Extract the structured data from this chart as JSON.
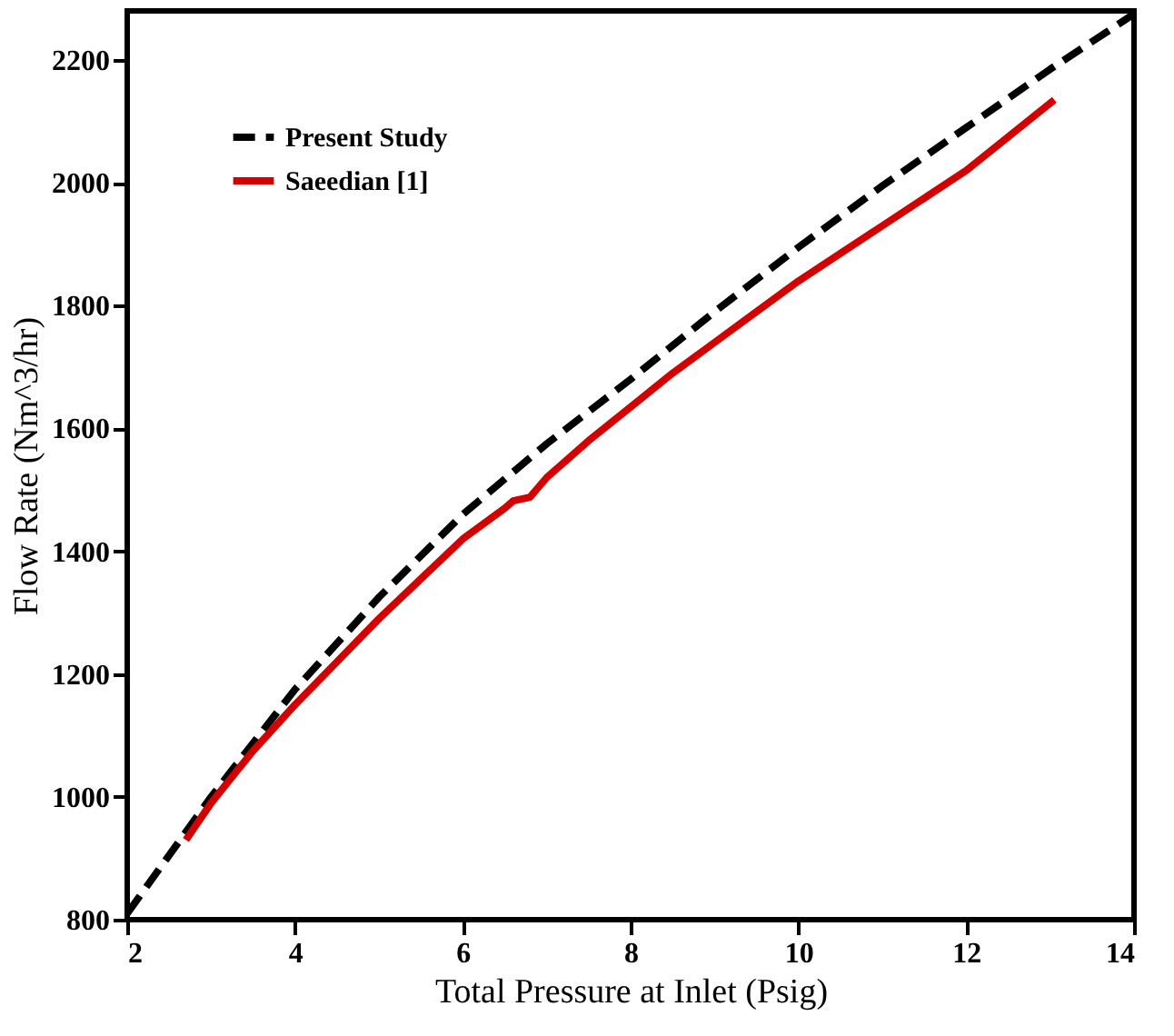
{
  "chart_data": {
    "type": "line",
    "xlabel": "Total Pressure at Inlet (Psig)",
    "ylabel": "Flow Rate (Nm^3/hr)",
    "xlim": [
      2,
      14
    ],
    "xticks": [
      2,
      4,
      6,
      8,
      10,
      12,
      14
    ],
    "ylim": [
      800,
      2280
    ],
    "yticks": [
      800,
      1000,
      1200,
      1400,
      1600,
      1800,
      2000,
      2200
    ],
    "grid": false,
    "legend": "top left",
    "marker": "none",
    "series": [
      {
        "name": "Present Study",
        "color": "#000000",
        "line_style": "dashed",
        "x": [
          2,
          3,
          4,
          5,
          6,
          7,
          8,
          9,
          10,
          11,
          12,
          13,
          14
        ],
        "values": [
          810,
          1000,
          1175,
          1325,
          1460,
          1575,
          1680,
          1790,
          1895,
          1995,
          2090,
          2185,
          2275
        ]
      },
      {
        "name": "Saeedian [1]",
        "color": "#d40000",
        "line_style": "solid",
        "x": [
          2.7,
          3,
          3.5,
          4,
          4.5,
          5,
          5.5,
          6,
          6.5,
          6.6,
          6.8,
          7,
          7.5,
          8,
          8.5,
          9,
          9.5,
          10,
          10.5,
          11,
          11.5,
          12,
          12.5,
          13.05
        ],
        "values": [
          930,
          990,
          1075,
          1150,
          1220,
          1290,
          1355,
          1420,
          1470,
          1482,
          1488,
          1520,
          1580,
          1635,
          1690,
          1740,
          1790,
          1840,
          1885,
          1930,
          1975,
          2020,
          2075,
          2135
        ]
      }
    ]
  }
}
